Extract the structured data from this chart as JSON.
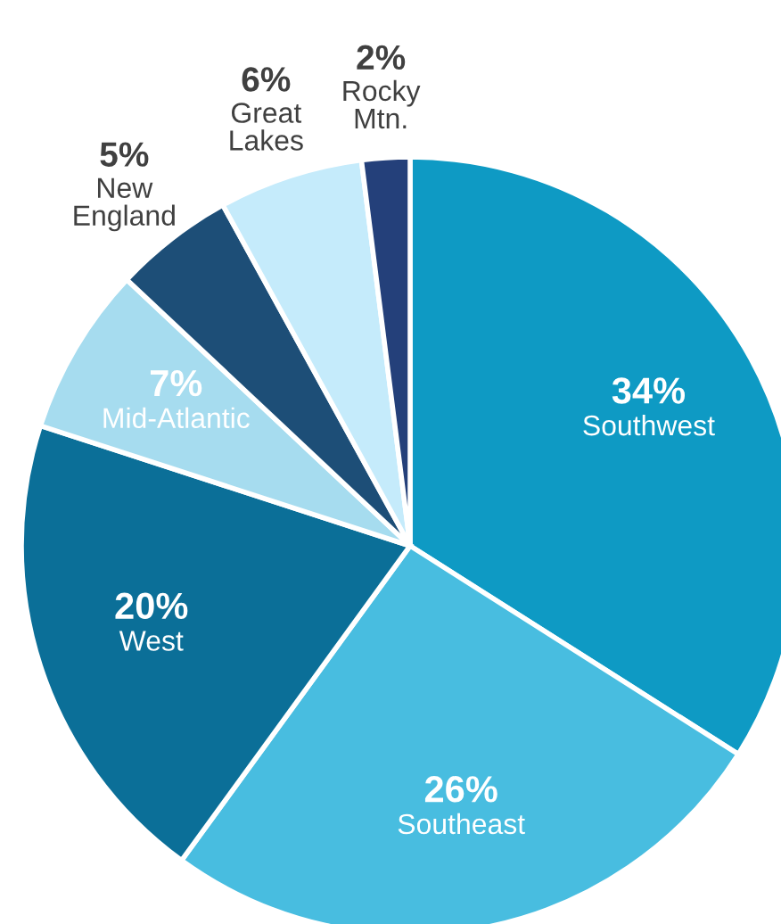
{
  "chart_data": {
    "type": "pie",
    "categories": [
      "Southwest",
      "Southeast",
      "West",
      "Mid-Atlantic",
      "New England",
      "Great Lakes",
      "Rocky Mtn."
    ],
    "values": [
      34,
      26,
      20,
      7,
      5,
      6,
      2
    ],
    "colors": [
      "#0e9ac4",
      "#48bde0",
      "#0b6f98",
      "#a6dcef",
      "#1d4e77",
      "#c5ebfb",
      "#24407a"
    ],
    "value_labels": [
      "34%",
      "26%",
      "20%",
      "7%",
      "5%",
      "6%",
      "2%"
    ],
    "legend": false
  }
}
